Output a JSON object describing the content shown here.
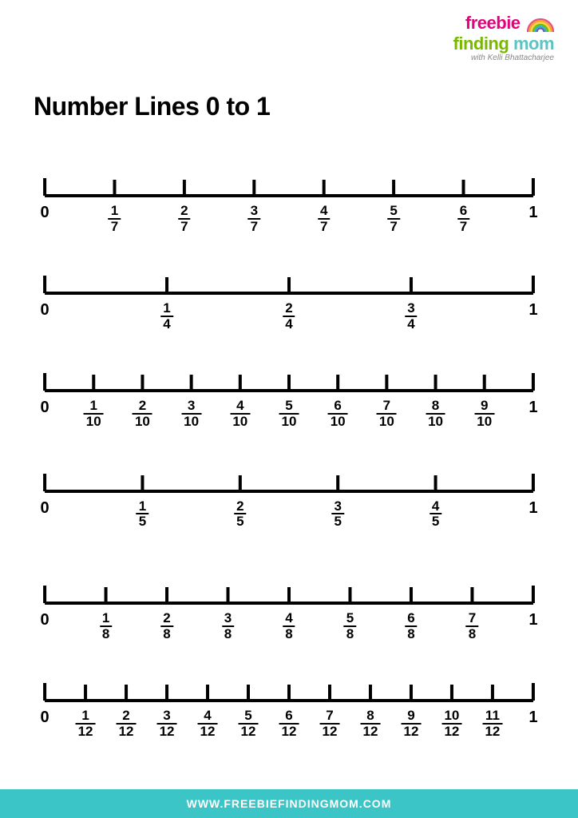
{
  "logo": {
    "word_freebie": "freebie",
    "word_finding": "finding",
    "word_mom": "mom",
    "tagline": "with Kelli Bhattacharjee",
    "color_freebie": "#e6007e",
    "color_finding": "#7ab800",
    "color_mom": "#5bc5c4",
    "color_tagline": "#888888",
    "rainbow_colors": [
      "#e94f85",
      "#f5a623",
      "#f8d44c",
      "#7ab800",
      "#29b8c5",
      "#6b5fb3"
    ]
  },
  "title": "Number Lines 0 to 1",
  "title_color": "#000000",
  "layout": {
    "line_color": "#000000",
    "line_thickness": 4,
    "tick_height": 22,
    "inner_tick_height": 20,
    "frac_fontsize": 17,
    "end_fontsize": 20,
    "line_vertical_positions_pct": [
      0,
      16.5,
      33,
      50,
      69,
      85.5
    ]
  },
  "number_lines": [
    {
      "denominator": 7,
      "start": "0",
      "end": "1",
      "fractions": [
        [
          1,
          7
        ],
        [
          2,
          7
        ],
        [
          3,
          7
        ],
        [
          4,
          7
        ],
        [
          5,
          7
        ],
        [
          6,
          7
        ]
      ]
    },
    {
      "denominator": 4,
      "start": "0",
      "end": "1",
      "fractions": [
        [
          1,
          4
        ],
        [
          2,
          4
        ],
        [
          3,
          4
        ]
      ]
    },
    {
      "denominator": 10,
      "start": "0",
      "end": "1",
      "fractions": [
        [
          1,
          10
        ],
        [
          2,
          10
        ],
        [
          3,
          10
        ],
        [
          4,
          10
        ],
        [
          5,
          10
        ],
        [
          6,
          10
        ],
        [
          7,
          10
        ],
        [
          8,
          10
        ],
        [
          9,
          10
        ]
      ]
    },
    {
      "denominator": 5,
      "start": "0",
      "end": "1",
      "fractions": [
        [
          1,
          5
        ],
        [
          2,
          5
        ],
        [
          3,
          5
        ],
        [
          4,
          5
        ]
      ]
    },
    {
      "denominator": 8,
      "start": "0",
      "end": "1",
      "fractions": [
        [
          1,
          8
        ],
        [
          2,
          8
        ],
        [
          3,
          8
        ],
        [
          4,
          8
        ],
        [
          5,
          8
        ],
        [
          6,
          8
        ],
        [
          7,
          8
        ]
      ]
    },
    {
      "denominator": 12,
      "start": "0",
      "end": "1",
      "fractions": [
        [
          1,
          12
        ],
        [
          2,
          12
        ],
        [
          3,
          12
        ],
        [
          4,
          12
        ],
        [
          5,
          12
        ],
        [
          6,
          12
        ],
        [
          7,
          12
        ],
        [
          8,
          12
        ],
        [
          9,
          12
        ],
        [
          10,
          12
        ],
        [
          11,
          12
        ]
      ]
    }
  ],
  "footer": {
    "text": "WWW.FREEBIEFINDINGMOM.COM",
    "background": "#3cc5c7",
    "text_color": "#ffffff"
  }
}
